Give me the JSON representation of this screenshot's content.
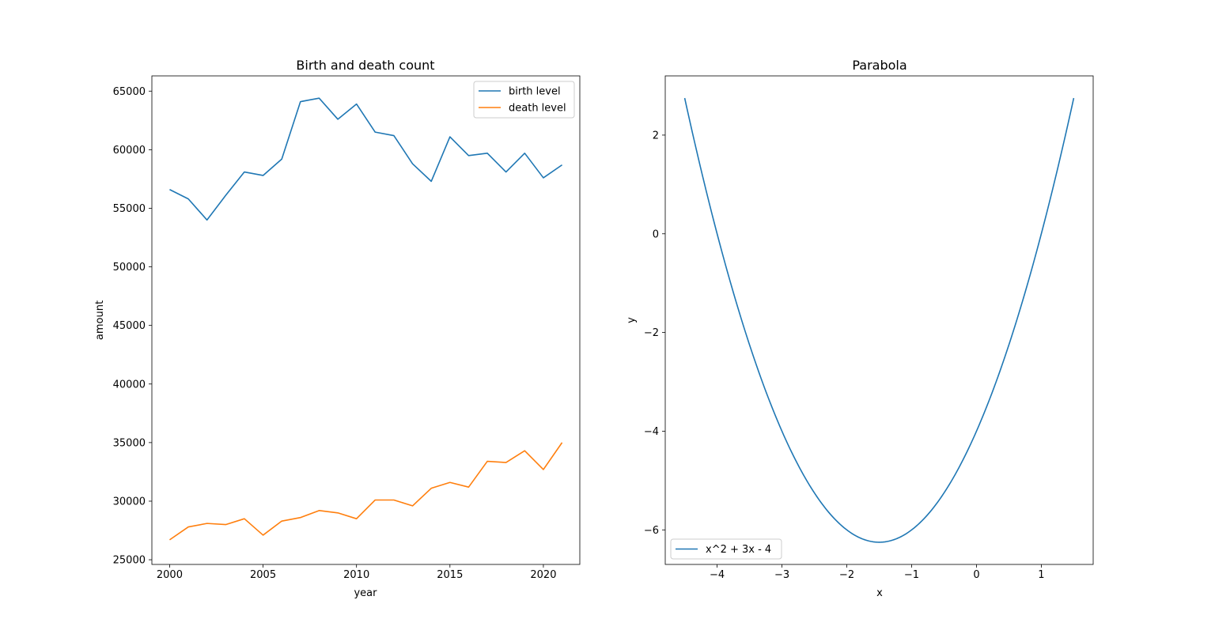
{
  "chart_data": [
    {
      "type": "line",
      "title": "Birth and death count",
      "xlabel": "year",
      "ylabel": "amount",
      "xlim": [
        1999.05,
        2021.95
      ],
      "ylim": [
        24600,
        66300
      ],
      "xticks": [
        2000,
        2005,
        2010,
        2015,
        2020
      ],
      "yticks": [
        25000,
        30000,
        35000,
        40000,
        45000,
        50000,
        55000,
        60000,
        65000
      ],
      "grid": false,
      "legend_loc": "top-right",
      "x": [
        2000,
        2001,
        2002,
        2003,
        2004,
        2005,
        2006,
        2007,
        2008,
        2009,
        2010,
        2011,
        2012,
        2013,
        2014,
        2015,
        2016,
        2017,
        2018,
        2019,
        2020,
        2021
      ],
      "series": [
        {
          "name": "birth level",
          "color": "#1f77b4",
          "values": [
            56600,
            55800,
            54000,
            56100,
            58100,
            57800,
            59200,
            64100,
            64400,
            62600,
            63900,
            61500,
            61200,
            58800,
            57300,
            61100,
            59500,
            59700,
            58100,
            59700,
            57600,
            58700
          ]
        },
        {
          "name": "death level",
          "color": "#ff7f0e",
          "values": [
            26700,
            27800,
            28100,
            28000,
            28500,
            27100,
            28300,
            28600,
            29200,
            29000,
            28500,
            30100,
            30100,
            29600,
            31100,
            31600,
            31200,
            33400,
            33300,
            34300,
            32700,
            35000
          ]
        }
      ]
    },
    {
      "type": "line",
      "title": "Parabola",
      "xlabel": "x",
      "ylabel": "y",
      "xlim": [
        -4.8,
        1.8
      ],
      "ylim": [
        -6.7,
        3.2
      ],
      "xticks": [
        -4,
        -3,
        -2,
        -1,
        0,
        1
      ],
      "yticks": [
        -6,
        -4,
        -2,
        0,
        2
      ],
      "grid": false,
      "legend_loc": "lower-left",
      "function": "x^2 + 3x - 4",
      "x_range": [
        -4.5,
        1.5
      ],
      "series": [
        {
          "name": "x^2 + 3x - 4",
          "color": "#1f77b4"
        }
      ]
    }
  ]
}
